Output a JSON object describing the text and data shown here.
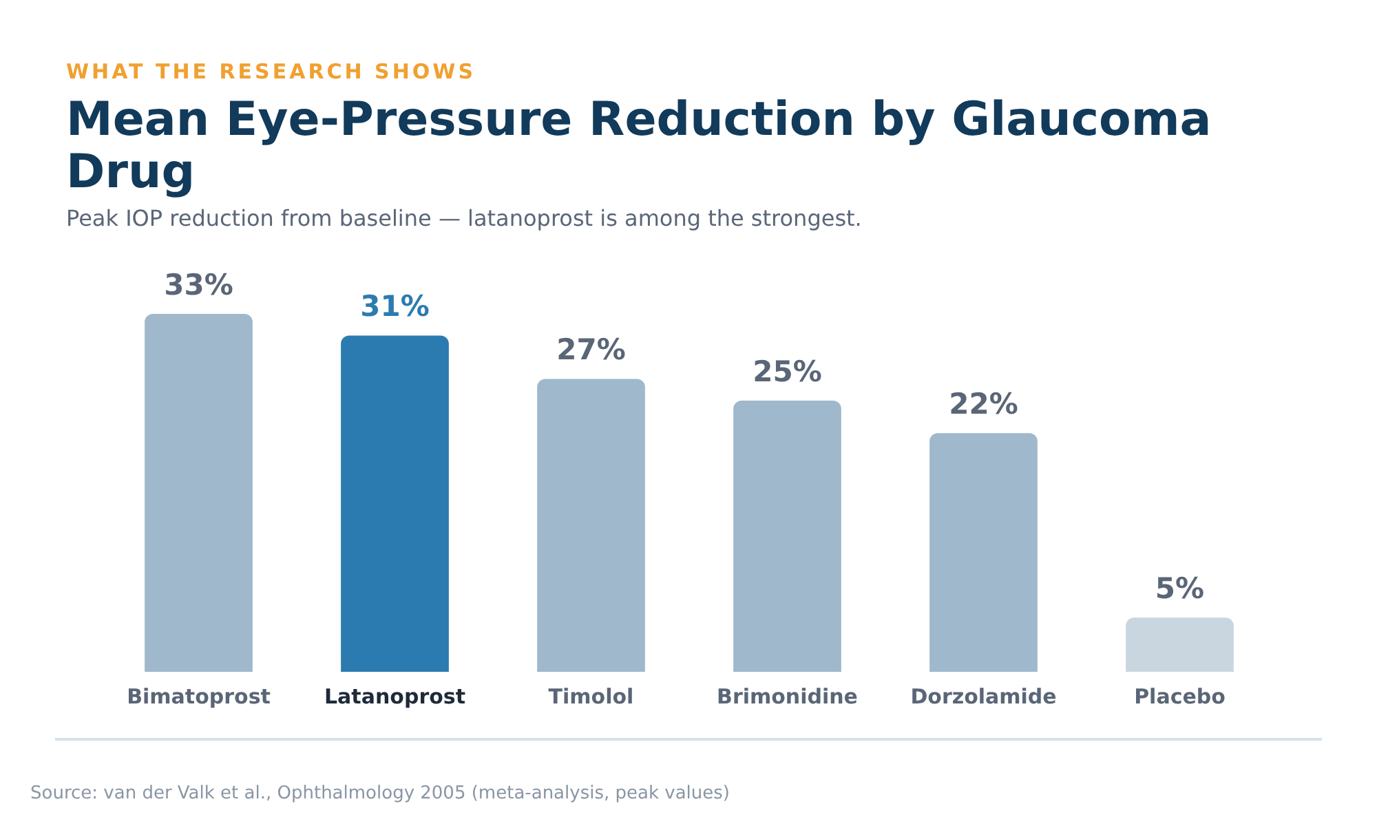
{
  "chart_data": {
    "type": "bar",
    "subtitle": "WHAT THE RESEARCH SHOWS",
    "title": "Mean Eye-Pressure Reduction by Glaucoma Drug",
    "annotations": [
      "Peak IOP reduction from baseline — latanoprost is among the strongest.",
      "Source: van der Valk et al., Ophthalmology 2005 (meta-analysis, peak values)"
    ],
    "categories": [
      "Bimatoprost",
      "Latanoprost",
      "Timolol",
      "Brimonidine",
      "Dorzolamide",
      "Placebo"
    ],
    "values": [
      33,
      31,
      27,
      25,
      22,
      5
    ],
    "value_labels": [
      "33%",
      "31%",
      "27%",
      "25%",
      "22%",
      "5%"
    ],
    "colors": [
      "#9fb8cc",
      "#2c7bb0",
      "#9fb8cc",
      "#9fb8cc",
      "#9fb8cc",
      "#c9d6df"
    ],
    "grid": false,
    "legend": false
  }
}
